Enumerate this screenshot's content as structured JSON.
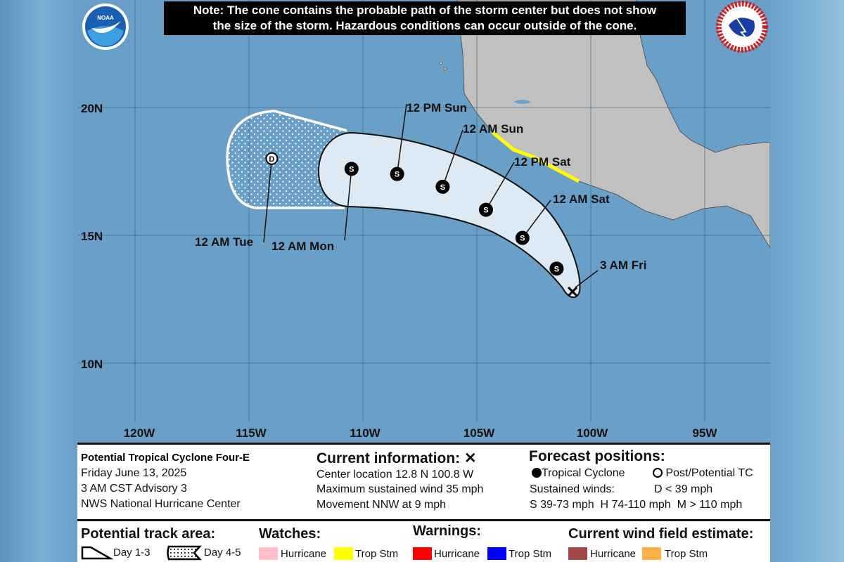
{
  "note": {
    "line1": "Note: The cone contains the probable path of the storm center but does not show",
    "line2": "the size of the storm. Hazardous conditions can occur outside of the cone."
  },
  "logos": {
    "left": "NOAA",
    "right": "NATIONAL WEATHER SERVICE"
  },
  "map": {
    "colors": {
      "ocean": "#6aa0c8",
      "land": "#c0c0c0",
      "cone": "#dde9f3",
      "tropical_storm_warning": "#ffff00"
    },
    "lat_labels": [
      "20N",
      "15N",
      "10N"
    ],
    "lon_labels": [
      "120W",
      "115W",
      "110W",
      "105W",
      "100W",
      "95W"
    ],
    "current": {
      "lat": 12.8,
      "lon": 100.8,
      "label": "3 AM Fri",
      "symbol": "x"
    },
    "forecast_points": [
      {
        "lat": 13.7,
        "lon": 101.5,
        "type": "S",
        "label": ""
      },
      {
        "lat": 14.9,
        "lon": 103.0,
        "type": "S",
        "label": "12 AM Sat"
      },
      {
        "lat": 16.0,
        "lon": 104.6,
        "type": "S",
        "label": "12 PM Sat"
      },
      {
        "lat": 16.9,
        "lon": 106.5,
        "type": "S",
        "label": "12 AM Sun"
      },
      {
        "lat": 17.4,
        "lon": 108.5,
        "type": "S",
        "label": "12 PM Sun"
      },
      {
        "lat": 17.6,
        "lon": 110.5,
        "type": "S",
        "label": "12 AM Mon"
      },
      {
        "lat": 18.0,
        "lon": 114.0,
        "type": "D",
        "label": "12 AM Tue"
      }
    ]
  },
  "info": {
    "storm_name": "Potential Tropical Cyclone Four-E",
    "date": "Friday June 13, 2025",
    "advisory": "3 AM CST Advisory 3",
    "center": "NWS National Hurricane Center"
  },
  "current_info": {
    "title": "Current information: ✕",
    "location": "Center location 12.8 N 100.8 W",
    "wind": "Maximum sustained wind 35 mph",
    "movement": "Movement NNW at 9 mph"
  },
  "forecast_legend": {
    "title": "Forecast positions:",
    "tropical_cyclone": "Tropical Cyclone",
    "post_potential": "Post/Potential TC",
    "sustained_label": "Sustained winds:",
    "d_range": "D < 39 mph",
    "ranges": "S 39-73 mph  H 74-110 mph  M > 110 mph"
  },
  "bottom_legend": {
    "track_title": "Potential track area:",
    "day13": "Day 1-3",
    "day45": "Day 4-5",
    "watches_title": "Watches:",
    "warnings_title": "Warnings:",
    "wind_title": "Current wind field estimate:",
    "hurricane": "Hurricane",
    "trop_stm": "Trop Stm",
    "colors": {
      "watch_hurricane": "#ffc0cb",
      "watch_trop": "#ffff00",
      "warn_hurricane": "#ff0000",
      "warn_trop": "#0000ff",
      "wind_hurricane": "#a04848",
      "wind_trop": "#ffb347"
    }
  }
}
